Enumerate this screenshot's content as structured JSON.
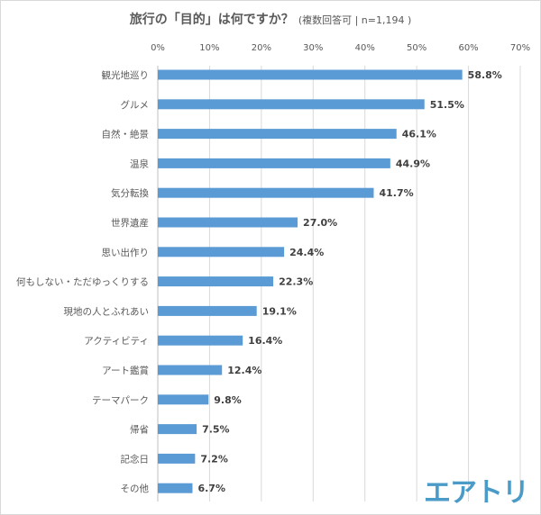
{
  "chart_data": {
    "type": "bar",
    "orientation": "horizontal",
    "title": "旅行の「目的」は何ですか？",
    "subtitle": "(複数回答可 | n=1,194 )",
    "categories": [
      "観光地巡り",
      "グルメ",
      "自然・絶景",
      "温泉",
      "気分転換",
      "世界遺産",
      "思い出作り",
      "何もしない・ただゆっくりする",
      "現地の人とふれあい",
      "アクティビティ",
      "アート鑑賞",
      "テーマパーク",
      "帰省",
      "記念日",
      "その他"
    ],
    "values": [
      58.8,
      51.5,
      46.1,
      44.9,
      41.7,
      27.0,
      24.4,
      22.3,
      19.1,
      16.4,
      12.4,
      9.8,
      7.5,
      7.2,
      6.7
    ],
    "value_labels": [
      "58.8%",
      "51.5%",
      "46.1%",
      "44.9%",
      "41.7%",
      "27.0%",
      "24.4%",
      "22.3%",
      "19.1%",
      "16.4%",
      "12.4%",
      "9.8%",
      "7.5%",
      "7.2%",
      "6.7%"
    ],
    "x_ticks": [
      "0%",
      "10%",
      "20%",
      "30%",
      "40%",
      "50%",
      "60%",
      "70%"
    ],
    "xlim": [
      0,
      70
    ],
    "axis_position": "top",
    "grid": true,
    "bar_color": "#5b9bd5"
  },
  "logo_text": "エアトリ"
}
